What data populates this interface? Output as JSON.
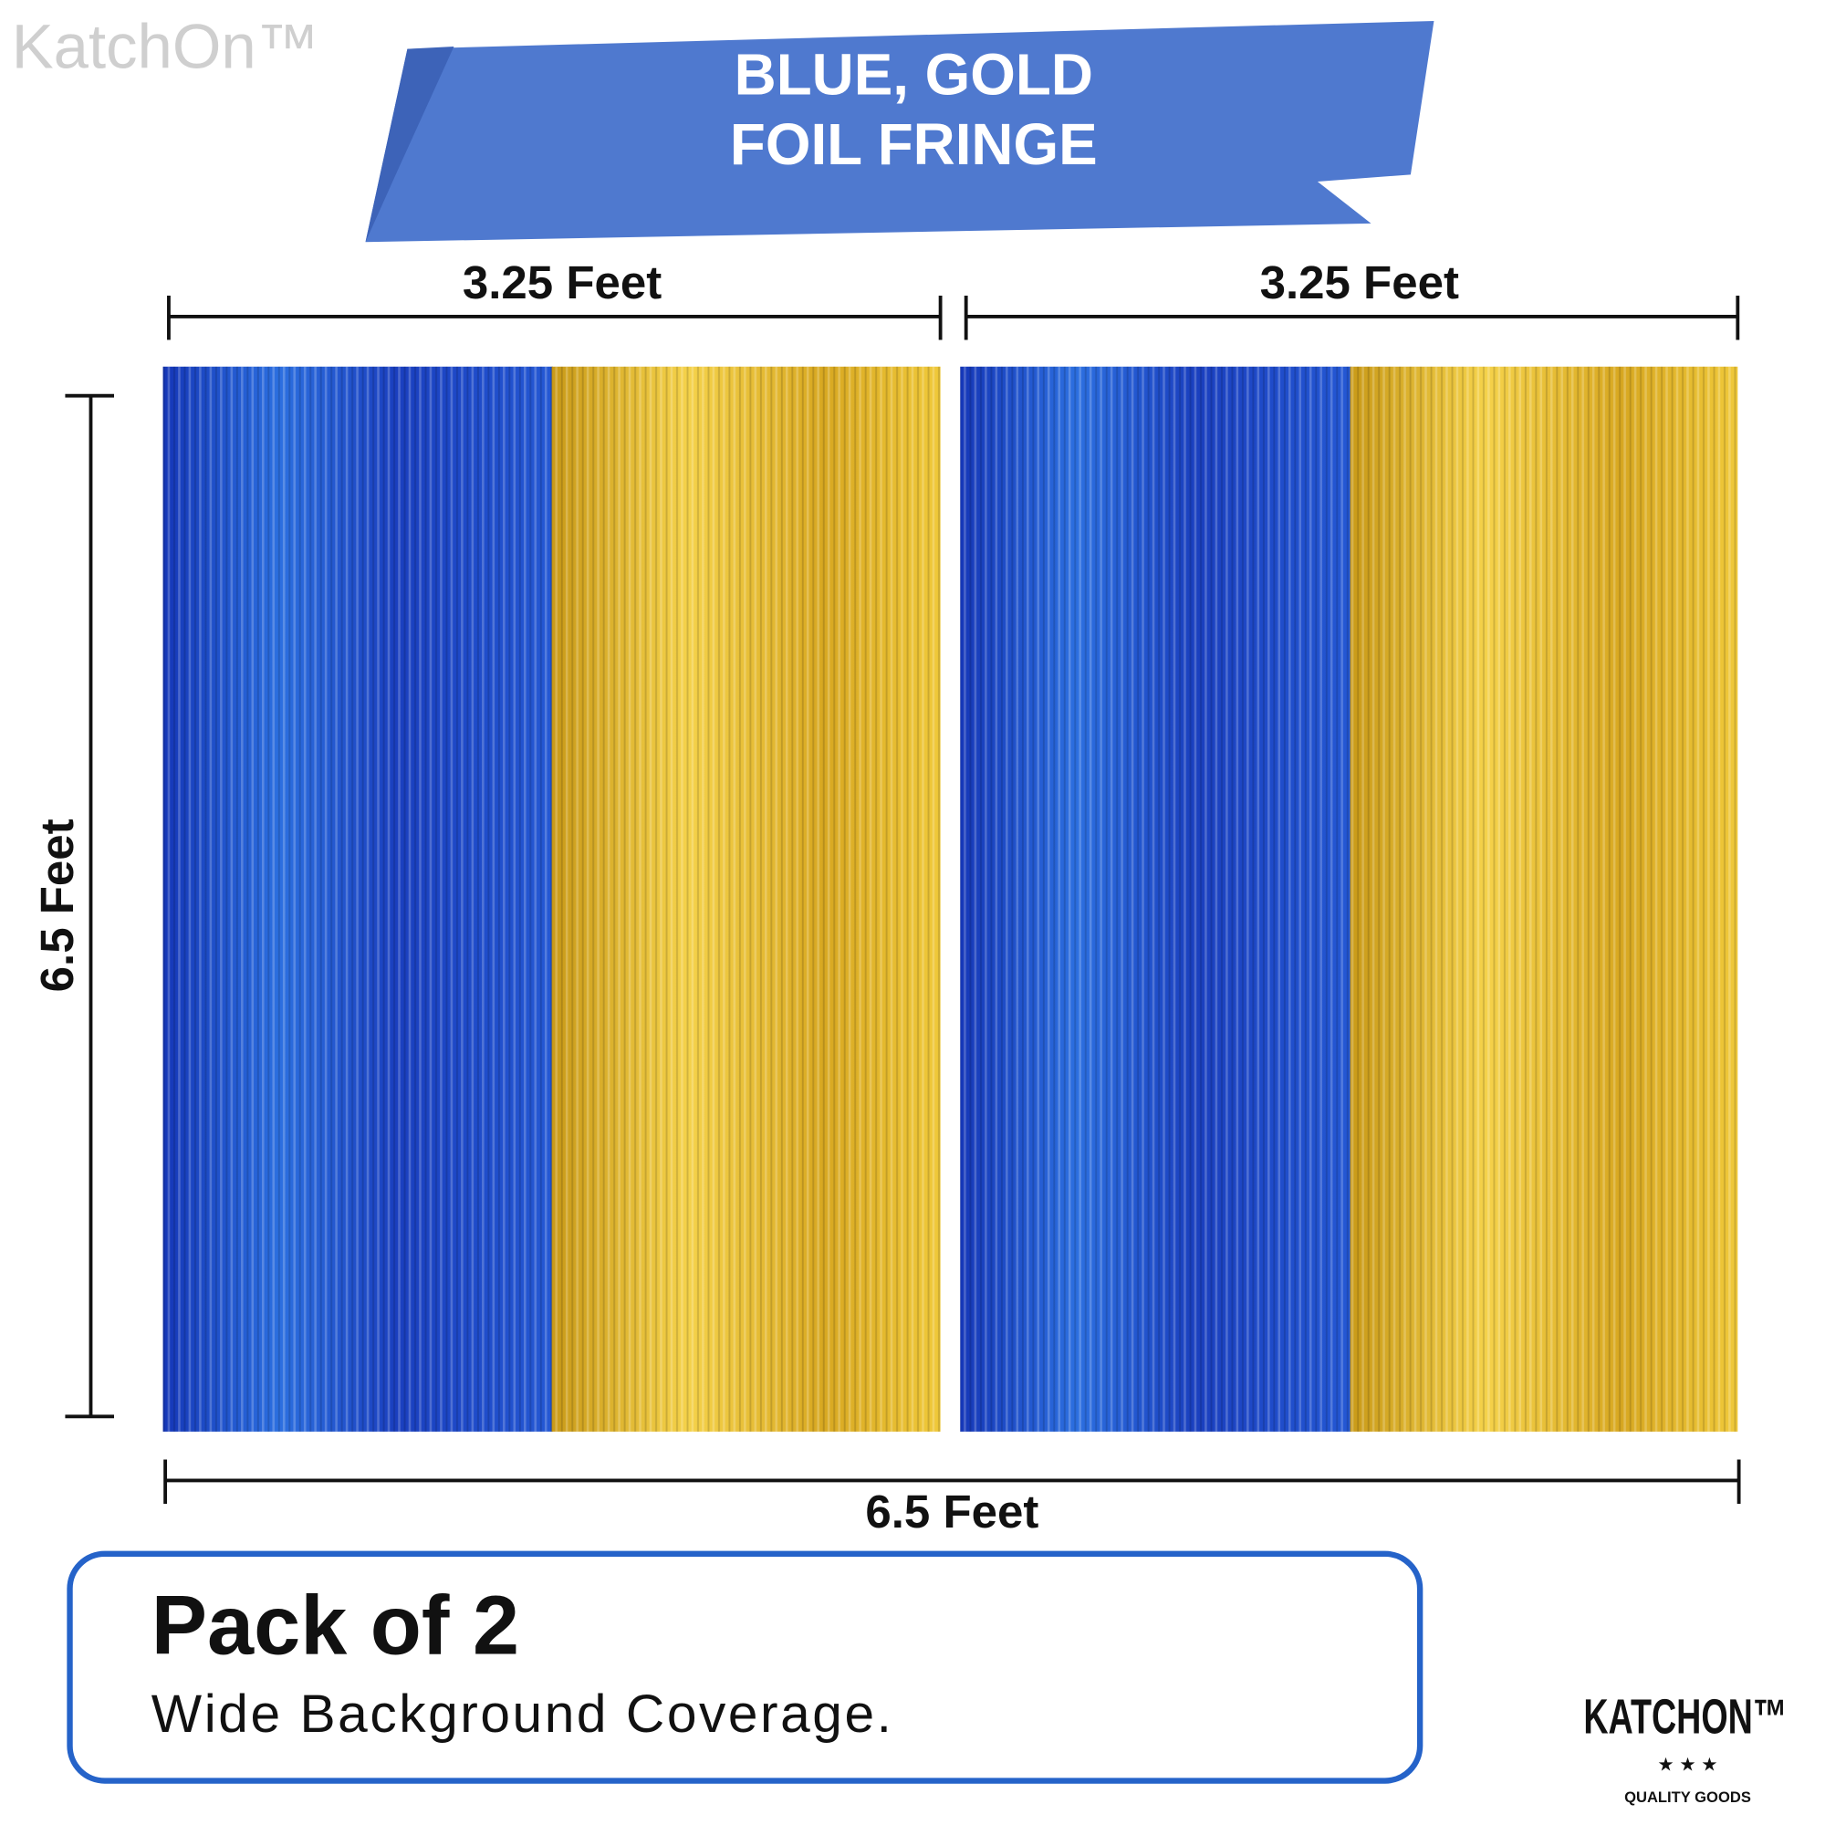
{
  "watermark": "KatchOn™",
  "banner": {
    "lines": [
      "BLUE, GOLD",
      "FOIL FRINGE"
    ]
  },
  "dimensions": {
    "top_left": "3.25 Feet",
    "top_right": "3.25 Feet",
    "height": "6.5 Feet",
    "total_width": "6.5 Feet"
  },
  "card": {
    "title": "Pack of 2",
    "subtitle": "Wide Background Coverage."
  },
  "logo": {
    "name": "KATCHON™",
    "tagline": "QUALITY GOODS"
  }
}
